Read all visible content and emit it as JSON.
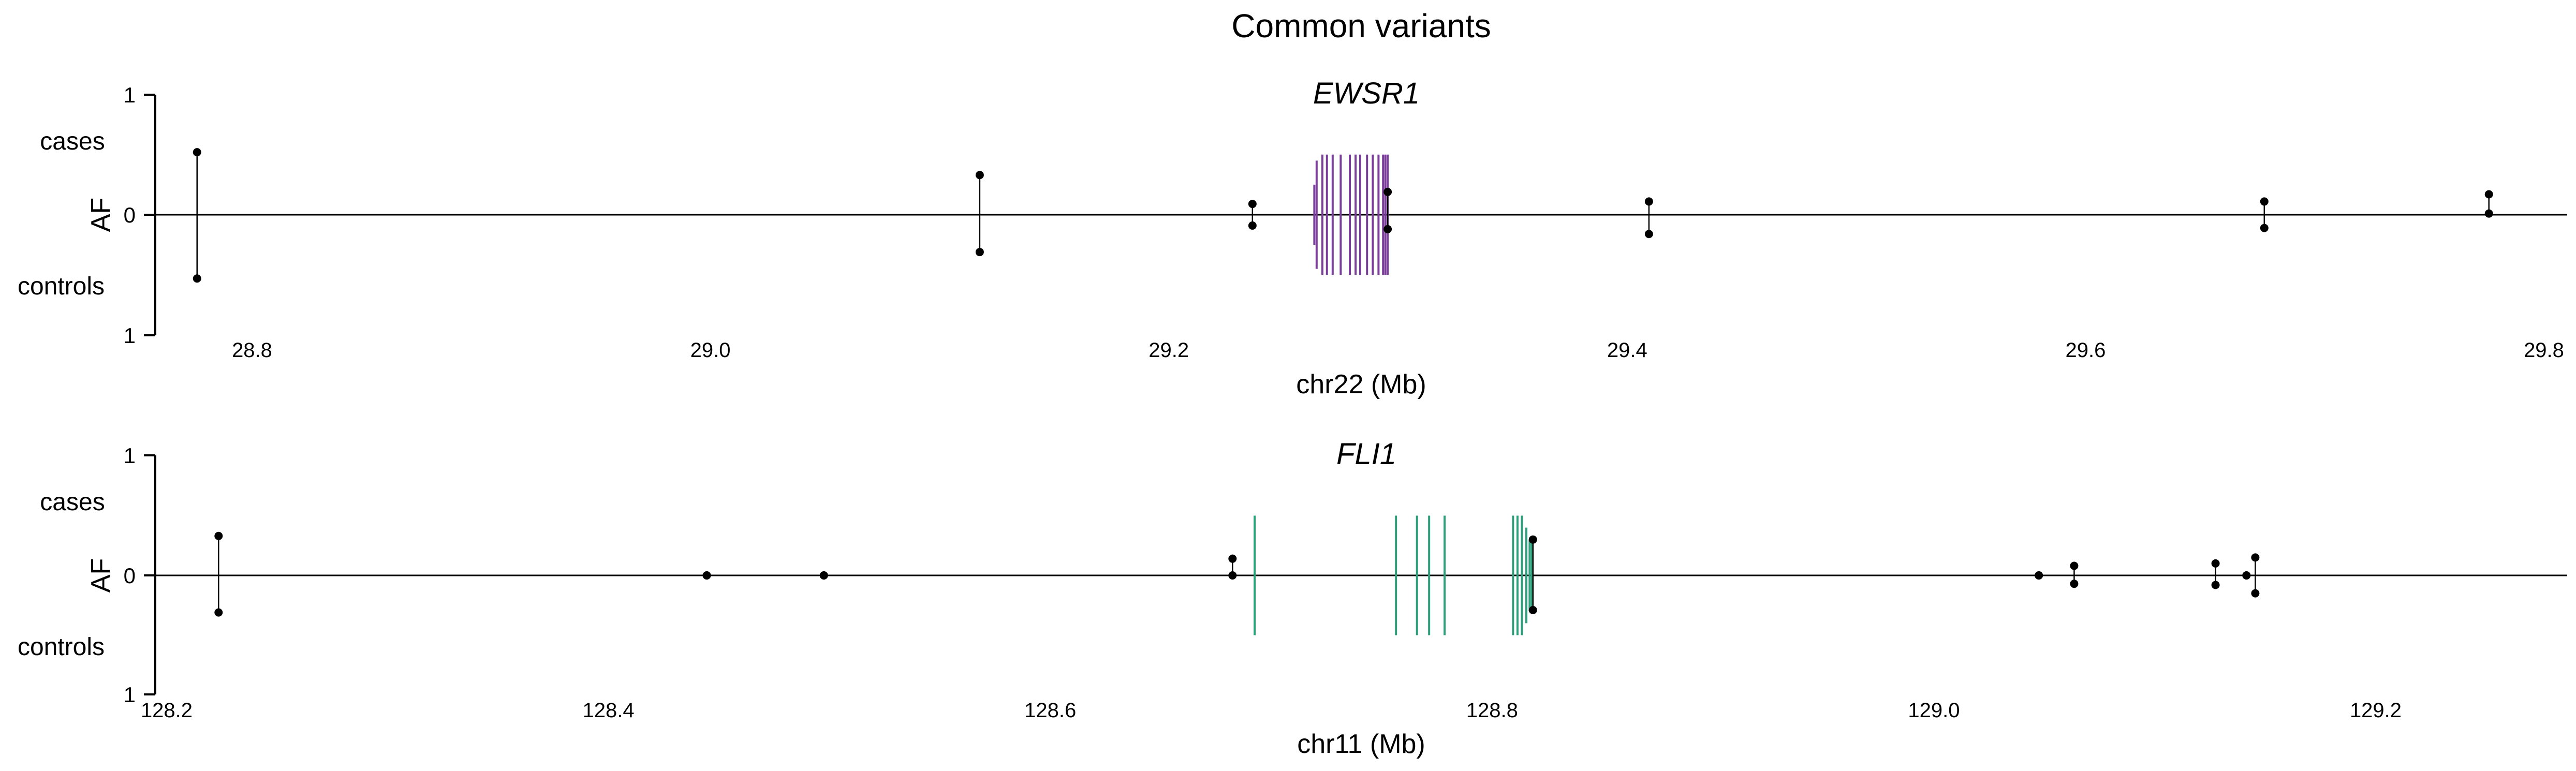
{
  "figure": {
    "title": "Common variants"
  },
  "colors": {
    "axis": "#000000",
    "point": "#000000",
    "ewsr1_exon": "#7a3f98",
    "fli1_exon": "#2ba07a"
  },
  "chart_data": [
    {
      "type": "scatter",
      "panel": "top",
      "title": "EWSR1",
      "xlabel": "chr22 (Mb)",
      "ylabel": "AF",
      "y_top_label": "cases",
      "y_bottom_label": "controls",
      "y_ticks": [
        "1",
        "0",
        "1"
      ],
      "xlim": [
        28.742,
        29.81
      ],
      "ylim": [
        -1,
        1
      ],
      "x_ticks": [
        28.8,
        29.0,
        29.2,
        29.4,
        29.6,
        29.8
      ],
      "x_tick_labels": [
        "28.8",
        "29.0",
        "29.2",
        "29.4",
        "29.6",
        "29.8"
      ],
      "gene_color": "#7a3f98",
      "gene_marks": [
        {
          "x": 29.2635,
          "half_height": 0.25
        },
        {
          "x": 29.2645,
          "half_height": 0.45
        },
        {
          "x": 29.267,
          "half_height": 0.5
        },
        {
          "x": 29.269,
          "half_height": 0.5
        },
        {
          "x": 29.2715,
          "half_height": 0.5
        },
        {
          "x": 29.275,
          "half_height": 0.5
        },
        {
          "x": 29.279,
          "half_height": 0.5
        },
        {
          "x": 29.2815,
          "half_height": 0.5
        },
        {
          "x": 29.2835,
          "half_height": 0.5
        },
        {
          "x": 29.2865,
          "half_height": 0.5
        },
        {
          "x": 29.289,
          "half_height": 0.5
        },
        {
          "x": 29.2915,
          "half_height": 0.5
        },
        {
          "x": 29.2935,
          "half_height": 0.5
        },
        {
          "x": 29.2945,
          "half_height": 0.5
        },
        {
          "x": 29.2955,
          "half_height": 0.5
        }
      ],
      "variants": [
        {
          "x": 28.776,
          "case_af": 0.52,
          "control_af": 0.53
        },
        {
          "x": 29.1175,
          "case_af": 0.33,
          "control_af": 0.31
        },
        {
          "x": 29.2365,
          "case_af": 0.09,
          "control_af": 0.09
        },
        {
          "x": 29.2955,
          "case_af": 0.19,
          "control_af": 0.12
        },
        {
          "x": 29.4095,
          "case_af": 0.11,
          "control_af": 0.16
        },
        {
          "x": 29.678,
          "case_af": 0.11,
          "control_af": 0.11
        },
        {
          "x": 29.776,
          "case_af": 0.17,
          "control_af": -0.01
        }
      ]
    },
    {
      "type": "scatter",
      "panel": "bottom",
      "title": "FLI1",
      "xlabel": "chr11 (Mb)",
      "ylabel": "AF",
      "y_top_label": "cases",
      "y_bottom_label": "controls",
      "y_ticks": [
        "1",
        "0",
        "1"
      ],
      "xlim": [
        128.195,
        129.3365
      ],
      "ylim": [
        -1,
        1
      ],
      "x_ticks": [
        128.2,
        128.4,
        128.6,
        128.8,
        129.0,
        129.2
      ],
      "x_tick_labels": [
        "128.2",
        "128.4",
        "128.6",
        "128.8",
        "129.0",
        "129.2"
      ],
      "gene_color": "#2ba07a",
      "gene_marks": [
        {
          "x": 128.6925,
          "half_height": 0.5
        },
        {
          "x": 128.7565,
          "half_height": 0.5
        },
        {
          "x": 128.766,
          "half_height": 0.5
        },
        {
          "x": 128.7715,
          "half_height": 0.5
        },
        {
          "x": 128.7785,
          "half_height": 0.5
        },
        {
          "x": 128.8095,
          "half_height": 0.5
        },
        {
          "x": 128.8115,
          "half_height": 0.5
        },
        {
          "x": 128.8135,
          "half_height": 0.5
        },
        {
          "x": 128.8155,
          "half_height": 0.4
        },
        {
          "x": 128.817,
          "half_height": 0.3
        },
        {
          "x": 128.818,
          "half_height": 0.3
        }
      ],
      "variants": [
        {
          "x": 128.2235,
          "case_af": 0.33,
          "control_af": 0.31
        },
        {
          "x": 128.4445,
          "case_af": 0.0,
          "control_af": 0.0
        },
        {
          "x": 128.4975,
          "case_af": 0.0,
          "control_af": 0.0
        },
        {
          "x": 128.6825,
          "case_af": 0.14,
          "control_af": 0.0
        },
        {
          "x": 128.8185,
          "case_af": 0.3,
          "control_af": 0.29
        },
        {
          "x": 129.0475,
          "case_af": 0.0,
          "control_af": 0.0
        },
        {
          "x": 129.0635,
          "case_af": 0.08,
          "control_af": 0.07
        },
        {
          "x": 129.1275,
          "case_af": 0.1,
          "control_af": 0.08
        },
        {
          "x": 129.1415,
          "case_af": 0.0,
          "control_af": 0.0
        },
        {
          "x": 129.1455,
          "case_af": 0.15,
          "control_af": 0.15
        }
      ]
    }
  ]
}
